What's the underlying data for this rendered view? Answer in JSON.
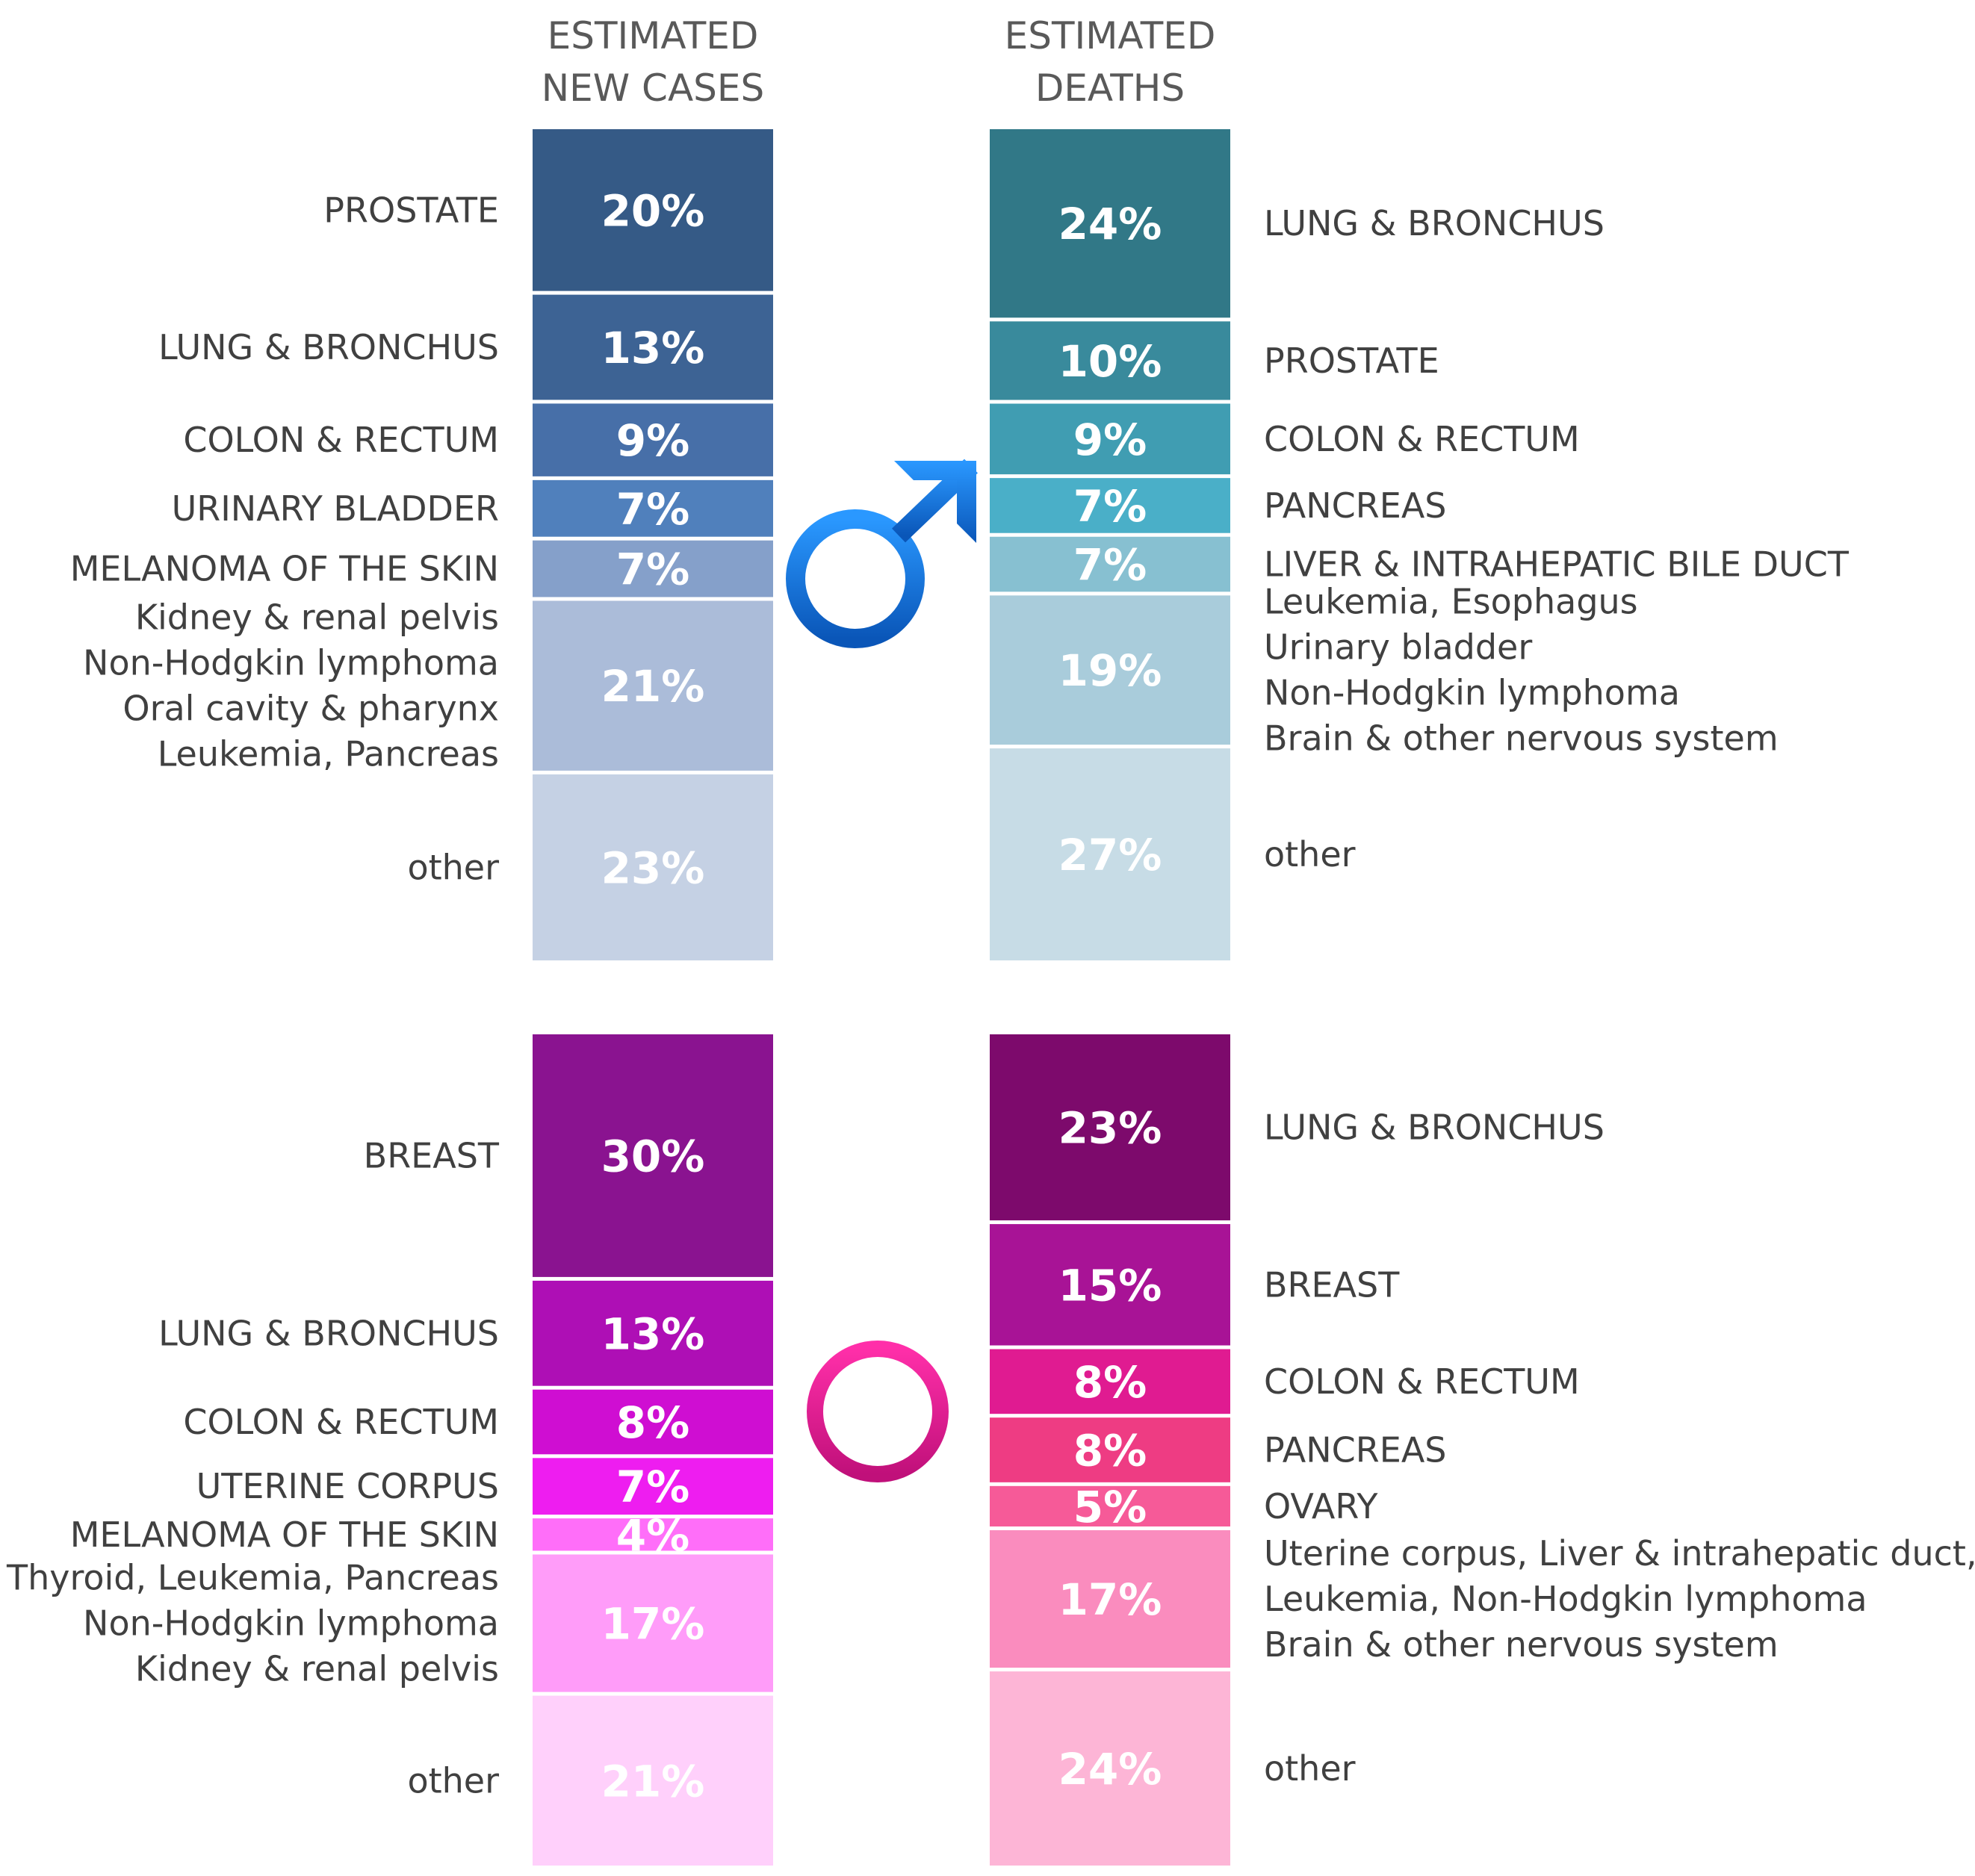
{
  "chart_data": [
    {
      "type": "stacked-bar",
      "group": "male",
      "column": "new_cases",
      "header": [
        "ESTIMATED",
        "NEW CASES"
      ],
      "label_side": "left",
      "segments": [
        {
          "value": 20,
          "label": "20%",
          "color": "#355a86",
          "text": [
            "PROSTATE"
          ]
        },
        {
          "value": 13,
          "label": "13%",
          "color": "#3d6394",
          "text": [
            "LUNG & BRONCHUS"
          ]
        },
        {
          "value": 9,
          "label": "9%",
          "color": "#476fa8",
          "text": [
            "COLON & RECTUM"
          ]
        },
        {
          "value": 7,
          "label": "7%",
          "color": "#5080bc",
          "text": [
            "URINARY BLADDER"
          ]
        },
        {
          "value": 7,
          "label": "7%",
          "color": "#85a0ca",
          "text": [
            "MELANOMA OF THE SKIN"
          ]
        },
        {
          "value": 21,
          "label": "21%",
          "color": "#abbcd9",
          "text": [
            "Kidney & renal pelvis",
            "Non-Hodgkin lymphoma",
            "Oral cavity & pharynx",
            "Leukemia, Pancreas"
          ]
        },
        {
          "value": 23,
          "label": "23%",
          "color": "#c5d1e4",
          "text": [
            "other"
          ]
        }
      ]
    },
    {
      "type": "stacked-bar",
      "group": "male",
      "column": "deaths",
      "header": [
        "ESTIMATED",
        "DEATHS"
      ],
      "label_side": "right",
      "segments": [
        {
          "value": 24,
          "label": "24%",
          "color": "#317887",
          "text": [
            "LUNG & BRONCHUS"
          ]
        },
        {
          "value": 10,
          "label": "10%",
          "color": "#398a9c",
          "text": [
            "PROSTATE"
          ]
        },
        {
          "value": 9,
          "label": "9%",
          "color": "#409db2",
          "text": [
            "COLON & RECTUM"
          ]
        },
        {
          "value": 7,
          "label": "7%",
          "color": "#4aafc8",
          "text": [
            "PANCREAS"
          ]
        },
        {
          "value": 7,
          "label": "7%",
          "color": "#87c0d1",
          "text": [
            "LIVER & INTRAHEPATIC BILE DUCT"
          ]
        },
        {
          "value": 19,
          "label": "19%",
          "color": "#a9ccdb",
          "text": [
            "Leukemia, Esophagus",
            "Urinary bladder",
            "Non-Hodgkin lymphoma",
            "Brain & other nervous system"
          ]
        },
        {
          "value": 27,
          "label": "27%",
          "color": "#c7dce6",
          "text": [
            "other"
          ]
        }
      ]
    },
    {
      "type": "stacked-bar",
      "group": "female",
      "column": "new_cases",
      "label_side": "left",
      "segments": [
        {
          "value": 30,
          "label": "30%",
          "color": "#8a1390",
          "text": [
            "BREAST"
          ]
        },
        {
          "value": 13,
          "label": "13%",
          "color": "#ae0fb5",
          "text": [
            "LUNG & BRONCHUS"
          ]
        },
        {
          "value": 8,
          "label": "8%",
          "color": "#cf0ed2",
          "text": [
            "COLON & RECTUM"
          ]
        },
        {
          "value": 7,
          "label": "7%",
          "color": "#ee1df0",
          "text": [
            "UTERINE CORPUS"
          ]
        },
        {
          "value": 4,
          "label": "4%",
          "color": "#ff6ef9",
          "text": [
            "MELANOMA OF THE SKIN"
          ]
        },
        {
          "value": 17,
          "label": "17%",
          "color": "#ff9cf9",
          "text": [
            "Thyroid, Leukemia, Pancreas",
            "Non-Hodgkin lymphoma",
            "Kidney & renal pelvis"
          ]
        },
        {
          "value": 21,
          "label": "21%",
          "color": "#ffd0fb",
          "text": [
            "other"
          ]
        }
      ]
    },
    {
      "type": "stacked-bar",
      "group": "female",
      "column": "deaths",
      "label_side": "right",
      "segments": [
        {
          "value": 23,
          "label": "23%",
          "color": "#7d0a6c",
          "text": [
            "LUNG & BRONCHUS"
          ]
        },
        {
          "value": 15,
          "label": "15%",
          "color": "#a81396",
          "text": [
            "BREAST"
          ]
        },
        {
          "value": 8,
          "label": "8%",
          "color": "#e01b91",
          "text": [
            "COLON & RECTUM"
          ]
        },
        {
          "value": 8,
          "label": "8%",
          "color": "#ee3c83",
          "text": [
            "PANCREAS"
          ]
        },
        {
          "value": 5,
          "label": "5%",
          "color": "#f65a98",
          "text": [
            "OVARY"
          ]
        },
        {
          "value": 17,
          "label": "17%",
          "color": "#fa8cbe",
          "text": [
            "Uterine corpus, Liver & intrahepatic duct,",
            "Leukemia, Non-Hodgkin lymphoma",
            "Brain & other nervous system"
          ]
        },
        {
          "value": 24,
          "label": "24%",
          "color": "#fdb5d6",
          "text": [
            "other"
          ]
        }
      ]
    }
  ],
  "icons": {
    "male": {
      "name": "male-symbol-icon",
      "color": "#1a7ee6"
    },
    "female": {
      "name": "female-symbol-icon",
      "color": "#e0158f"
    }
  }
}
